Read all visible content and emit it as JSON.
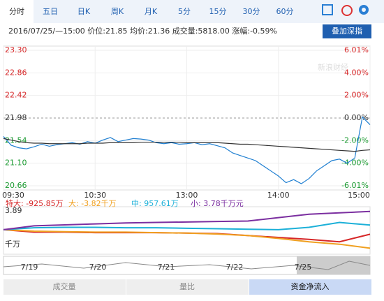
{
  "tabs": [
    "分时",
    "五日",
    "日K",
    "周K",
    "月K",
    "5分",
    "15分",
    "30分",
    "60分"
  ],
  "info": "2016/07/25/—15:00 价位:21.85 均价:21.36 成交量:5818.00 涨幅:-0.59%",
  "button": "叠加深指",
  "watermark": "新浪财经",
  "chart_data": [
    {
      "type": "line",
      "x": [
        0,
        5,
        10,
        15,
        20,
        25,
        30,
        35,
        40,
        45,
        50,
        55,
        60,
        65,
        70,
        75,
        80,
        85,
        90,
        95,
        100,
        105,
        110,
        115,
        120,
        125,
        130,
        135,
        140,
        145,
        150,
        155,
        160,
        165,
        170,
        175,
        180,
        185,
        190,
        195,
        200,
        205,
        210,
        215,
        220,
        225,
        230,
        235,
        240
      ],
      "series": [
        {
          "name": "价位",
          "color": "#1f7fd1",
          "values": [
            21.62,
            21.45,
            21.4,
            21.38,
            21.42,
            21.47,
            21.43,
            21.46,
            21.48,
            21.5,
            21.47,
            21.52,
            21.49,
            21.55,
            21.6,
            21.52,
            21.55,
            21.58,
            21.57,
            21.55,
            21.5,
            21.48,
            21.5,
            21.47,
            21.48,
            21.5,
            21.46,
            21.48,
            21.44,
            21.4,
            21.3,
            21.25,
            21.2,
            21.15,
            21.05,
            20.95,
            20.85,
            20.72,
            20.78,
            20.7,
            20.8,
            20.95,
            21.05,
            21.15,
            21.18,
            21.1,
            21.2,
            22.0,
            21.85
          ]
        },
        {
          "name": "均价",
          "color": "#333333",
          "values": [
            21.58,
            21.55,
            21.52,
            21.5,
            21.49,
            21.49,
            21.48,
            21.48,
            21.48,
            21.48,
            21.48,
            21.49,
            21.49,
            21.49,
            21.5,
            21.5,
            21.5,
            21.5,
            21.51,
            21.51,
            21.51,
            21.51,
            21.51,
            21.51,
            21.5,
            21.5,
            21.5,
            21.5,
            21.5,
            21.49,
            21.48,
            21.47,
            21.47,
            21.46,
            21.45,
            21.44,
            21.43,
            21.42,
            21.41,
            21.4,
            21.39,
            21.38,
            21.37,
            21.36,
            21.35,
            21.34,
            21.33,
            21.35,
            21.36
          ]
        }
      ],
      "xlim": [
        0,
        240
      ],
      "xticks": [
        {
          "value": 0,
          "label": "09:30"
        },
        {
          "value": 60,
          "label": "10:30"
        },
        {
          "value": 120,
          "label": "13:00"
        },
        {
          "value": 180,
          "label": "14:00"
        },
        {
          "value": 240,
          "label": "15:00"
        }
      ],
      "ylim": [
        20.66,
        23.3
      ],
      "yticks": [
        {
          "value": 23.3,
          "label": "23.30"
        },
        22.86,
        22.42,
        21.98,
        21.54,
        {
          "value": 21.1,
          "label": "21.10"
        },
        20.66
      ],
      "y2lim": [
        -6.01,
        6.01
      ],
      "y2ticks": [
        {
          "value": 6.01,
          "label": "6.01%"
        },
        {
          "value": 4,
          "label": "4.00%"
        },
        {
          "value": 2,
          "label": "2.00%"
        },
        {
          "value": 0,
          "label": "0.00%"
        },
        {
          "value": -2,
          "label": "-2.00%"
        },
        {
          "value": -4,
          "label": "-4.00%"
        },
        {
          "value": -6.01,
          "label": "-6.01%"
        }
      ],
      "grid": true
    },
    {
      "type": "line",
      "x": [
        0,
        20,
        40,
        60,
        80,
        100,
        120,
        140,
        160,
        180,
        200,
        220,
        240
      ],
      "series": [
        {
          "name": "特大: -925.85万",
          "color": "#d62728",
          "values": [
            0,
            -0.5,
            -0.5,
            -0.6,
            -0.6,
            -0.6,
            -0.7,
            -0.8,
            -1.2,
            -1.6,
            -2.0,
            -2.5,
            -0.93
          ]
        },
        {
          "name": "大: -3.82千万",
          "color": "#f0a020",
          "values": [
            0,
            -0.3,
            -0.4,
            -0.5,
            -0.5,
            -0.6,
            -0.7,
            -0.9,
            -1.2,
            -1.8,
            -2.5,
            -3.0,
            -3.82
          ]
        },
        {
          "name": "中: 957.61万",
          "color": "#1cb0d8",
          "values": [
            0,
            0.4,
            0.5,
            0.5,
            0.4,
            0.4,
            0.3,
            0.2,
            0.1,
            0.0,
            0.5,
            1.5,
            0.96
          ]
        },
        {
          "name": "小: 3.78千万元",
          "color": "#7b2fa0",
          "values": [
            0,
            0.8,
            1.0,
            1.2,
            1.4,
            1.5,
            1.6,
            1.7,
            1.8,
            2.5,
            3.2,
            3.5,
            3.78
          ]
        }
      ],
      "xlim": [
        0,
        240
      ],
      "ylim": [
        -4.2,
        3.89
      ],
      "yticks": [
        3.89
      ],
      "y_unit": "千万"
    }
  ],
  "timeline": [
    "7/19",
    "7/20",
    "7/21",
    "7/22",
    "7/25"
  ],
  "bottom_tabs": [
    "成交量",
    "量比",
    "资金净流入"
  ]
}
